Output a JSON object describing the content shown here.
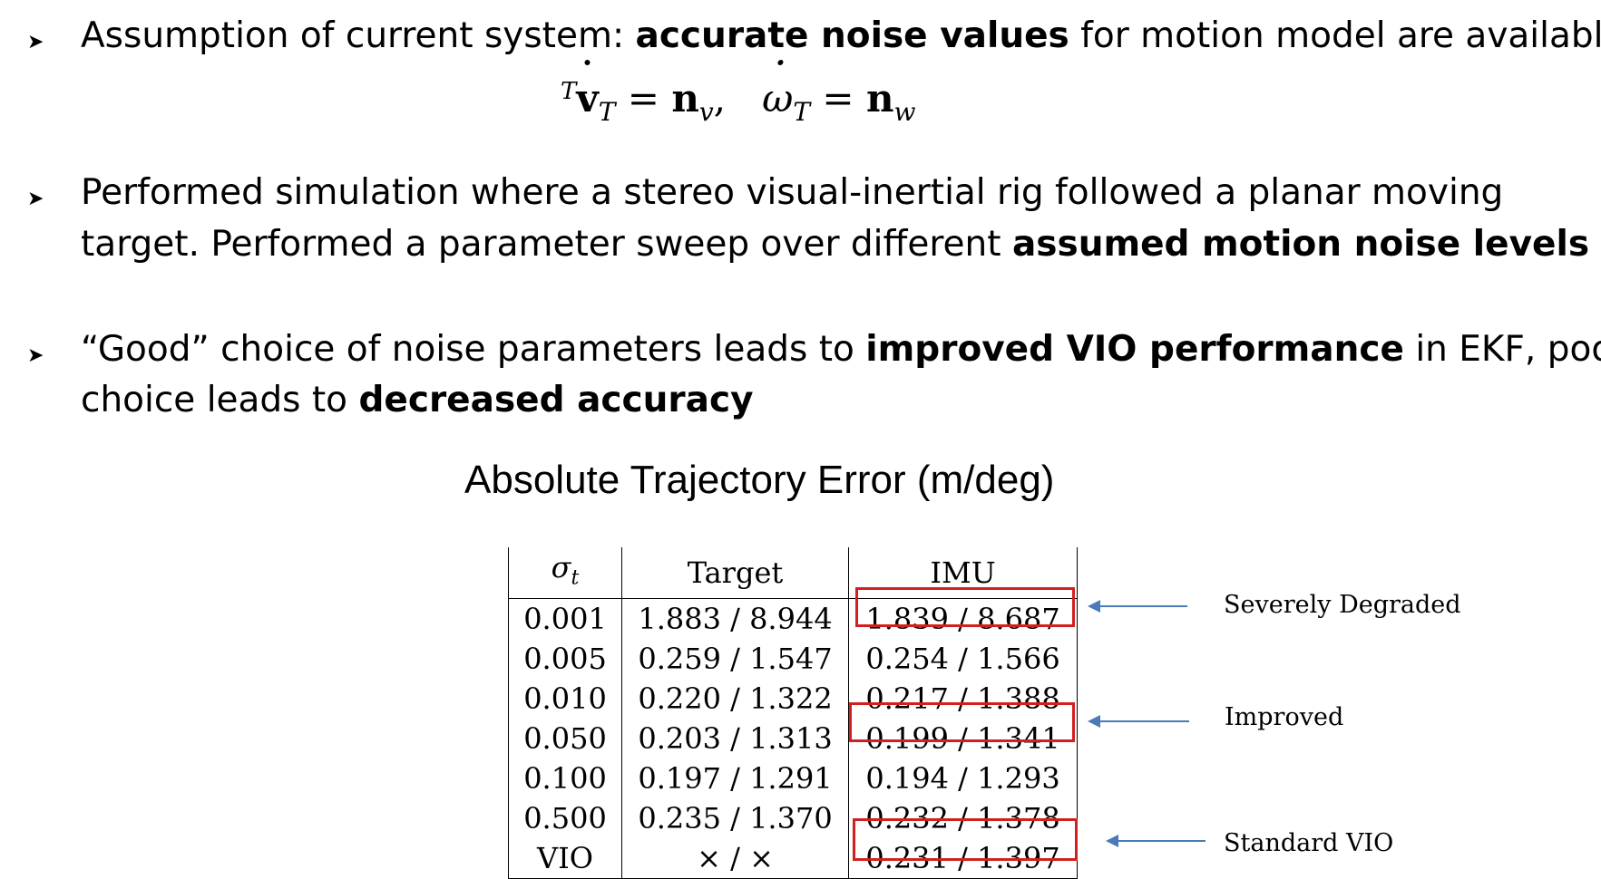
{
  "bullets": [
    {
      "line1": [
        {
          "t": "Assumption of current system: ",
          "b": false
        },
        {
          "t": "accurate noise values",
          "b": true
        },
        {
          "t": " for motion model are available",
          "b": false
        }
      ]
    },
    {
      "line1": [
        {
          "t": "Performed simulation where a stereo visual-inertial rig followed a planar moving",
          "b": false
        }
      ],
      "line2": [
        {
          "t": "target. Performed a parameter sweep over different ",
          "b": false
        },
        {
          "t": "assumed motion noise levels",
          "b": true
        }
      ]
    },
    {
      "line1": [
        {
          "t": "“Good” choice of noise parameters leads to ",
          "b": false
        },
        {
          "t": "improved VIO performance",
          "b": true
        },
        {
          "t": " in EKF, poor",
          "b": false
        }
      ],
      "line2": [
        {
          "t": "choice leads to ",
          "b": false
        },
        {
          "t": "decreased accuracy",
          "b": true
        }
      ]
    }
  ],
  "bullet_glyph": "➤",
  "equation": {
    "sup_T": "T",
    "v": "v",
    "sub_T1": "T",
    "eq1": " = ",
    "n1": "n",
    "sub_v": "v",
    "comma": ",   ",
    "omega": "ω",
    "sub_T2": "T",
    "eq2": " = ",
    "n2": "n",
    "sub_w": "w"
  },
  "table": {
    "title": "Absolute Trajectory Error (m/deg)",
    "headers": {
      "sigma": "σ",
      "sigma_sub": "t",
      "target": "Target",
      "imu": "IMU"
    },
    "rows": [
      {
        "sigma": "0.001",
        "target": "1.883 / 8.944",
        "imu": "1.839 / 8.687"
      },
      {
        "sigma": "0.005",
        "target": "0.259 / 1.547",
        "imu": "0.254 / 1.566"
      },
      {
        "sigma": "0.010",
        "target": "0.220 / 1.322",
        "imu": "0.217 / 1.388"
      },
      {
        "sigma": "0.050",
        "target": "0.203 / 1.313",
        "imu": "0.199 / 1.341"
      },
      {
        "sigma": "0.100",
        "target": "0.197 / 1.291",
        "imu": "0.194 / 1.293"
      },
      {
        "sigma": "0.500",
        "target": "0.235 / 1.370",
        "imu": "0.232 / 1.378"
      },
      {
        "sigma": "VIO",
        "target": "× / ×",
        "imu": "0.231 / 1.397"
      }
    ]
  },
  "annotations": {
    "severely_degraded": "Severely Degraded",
    "improved": "Improved",
    "standard_vio": "Standard VIO"
  },
  "colors": {
    "highlight_box": "#d22020",
    "arrow": "#4a7ab8"
  }
}
